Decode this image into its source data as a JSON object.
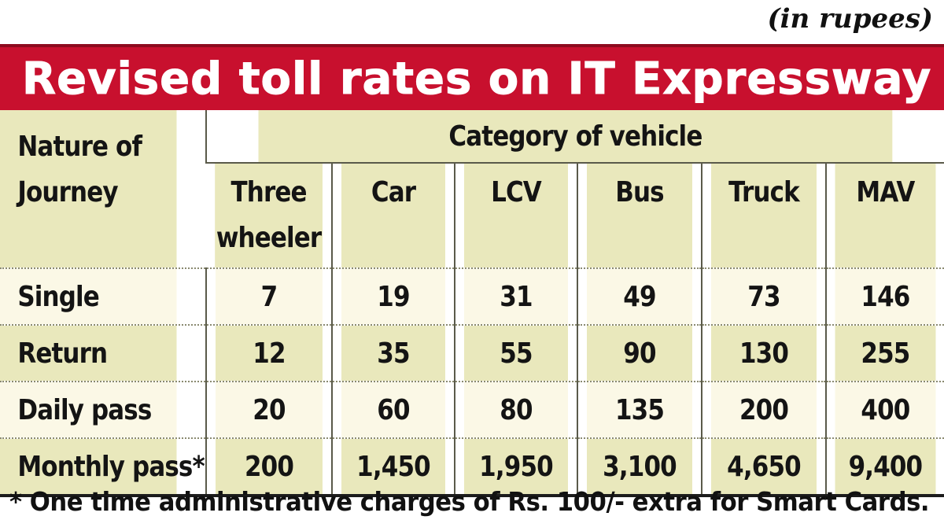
{
  "unit_note": "(in rupees)",
  "title": "Revised toll rates on IT Expressway",
  "table": {
    "nature_header": [
      "Nature of",
      "Journey"
    ],
    "category_header": "Category of vehicle",
    "vehicles": [
      [
        "Three",
        "wheeler"
      ],
      [
        "Car"
      ],
      [
        "LCV"
      ],
      [
        "Bus"
      ],
      [
        "Truck"
      ],
      [
        "MAV"
      ]
    ],
    "rows": [
      {
        "label": "Single",
        "values": [
          "7",
          "19",
          "31",
          "49",
          "73",
          "146"
        ]
      },
      {
        "label": "Return",
        "values": [
          "12",
          "35",
          "55",
          "90",
          "130",
          "255"
        ]
      },
      {
        "label": "Daily pass",
        "values": [
          "20",
          "60",
          "80",
          "135",
          "200",
          "400"
        ]
      },
      {
        "label": "Monthly pass*",
        "values": [
          "200",
          "1,450",
          "1,950",
          "3,100",
          "4,650",
          "9,400"
        ]
      }
    ]
  },
  "footnote": "* One time administrative charges of Rs. 100/- extra for Smart Cards.",
  "colors": {
    "title_bar": "#c8102e",
    "header_bg": "#e9e8bc",
    "row_light": "#fbf8e6",
    "row_dark": "#e9e8bc"
  }
}
